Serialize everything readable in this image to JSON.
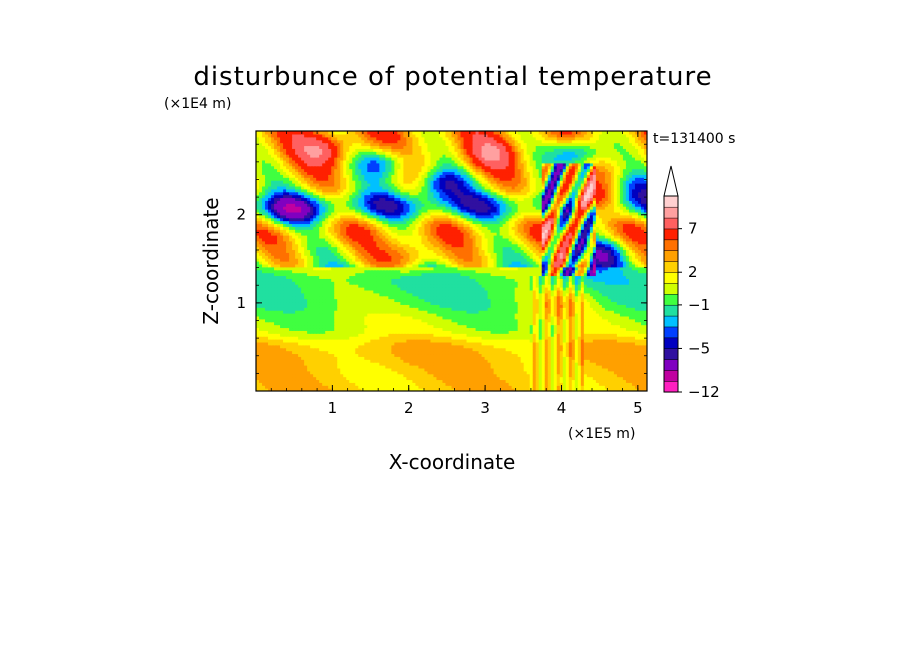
{
  "chart_data": {
    "type": "heatmap",
    "title": "disturbunce of potential temperature",
    "time_label": "t=131400 s",
    "xlabel": "X-coordinate",
    "ylabel": "Z-coordinate",
    "x_unit": "(×1E5 m)",
    "y_unit": "(×1E4 m)",
    "xlim": [
      0,
      5.12
    ],
    "ylim": [
      0,
      2.95
    ],
    "x_ticks": [
      "1",
      "2",
      "3",
      "4",
      "5"
    ],
    "y_ticks": [
      "1",
      "2"
    ],
    "x_tick_values": [
      1,
      2,
      3,
      4,
      5
    ],
    "y_tick_values": [
      1,
      2
    ],
    "colorbar": {
      "labels": [
        "7",
        "2",
        "−1",
        "−5",
        "−12"
      ],
      "label_levels": [
        7,
        2,
        -1,
        -5,
        -12
      ],
      "levels": [
        -12,
        -10,
        -8,
        -6,
        -5,
        -4,
        -3,
        -2,
        -1,
        0,
        1,
        2,
        3,
        4,
        5,
        7,
        9,
        11
      ],
      "colors": [
        "#ff20c0",
        "#c000a0",
        "#8000c0",
        "#3010a0",
        "#0000c0",
        "#0040ff",
        "#00c0ff",
        "#20e0a0",
        "#40ff40",
        "#d0ff00",
        "#ffff00",
        "#ffd000",
        "#ffa000",
        "#ff7000",
        "#ff2000",
        "#ff6060",
        "#ffa0a0",
        "#ffd0d0"
      ],
      "extend": "max"
    },
    "field": {
      "layers": [
        {
          "z": 0.15,
          "amp": 2.5
        },
        {
          "z": 0.45,
          "amp": 3.0
        },
        {
          "z": 0.75,
          "amp": 0.5
        },
        {
          "z": 1.05,
          "amp": -0.5
        },
        {
          "z": 1.25,
          "amp": -1.2
        },
        {
          "z": 1.55,
          "amp": 1.5
        },
        {
          "z": 1.85,
          "amp": 3.5
        },
        {
          "z": 2.1,
          "amp": -4.0
        },
        {
          "z": 2.35,
          "amp": 2.0
        },
        {
          "z": 2.6,
          "amp": 3.0
        },
        {
          "z": 2.85,
          "amp": 3.5
        }
      ],
      "blobs": [
        {
          "x": 2.4,
          "z": 2.35,
          "amp": -6
        },
        {
          "x": 1.7,
          "z": 2.6,
          "amp": -6
        },
        {
          "x": 4.2,
          "z": 2.7,
          "amp": -8
        },
        {
          "x": 4.3,
          "z": 2.15,
          "amp": 9
        },
        {
          "x": 4.5,
          "z": 1.55,
          "amp": -5
        },
        {
          "x": 4.0,
          "z": 1.0,
          "amp": 3
        },
        {
          "x": 0.9,
          "z": 2.75,
          "amp": 5
        },
        {
          "x": 3.1,
          "z": 2.7,
          "amp": 4
        },
        {
          "x": 2.0,
          "z": 1.55,
          "amp": 4
        },
        {
          "x": 4.9,
          "z": 2.3,
          "amp": -4
        },
        {
          "x": 0.4,
          "z": 2.0,
          "amp": -4
        }
      ]
    }
  }
}
